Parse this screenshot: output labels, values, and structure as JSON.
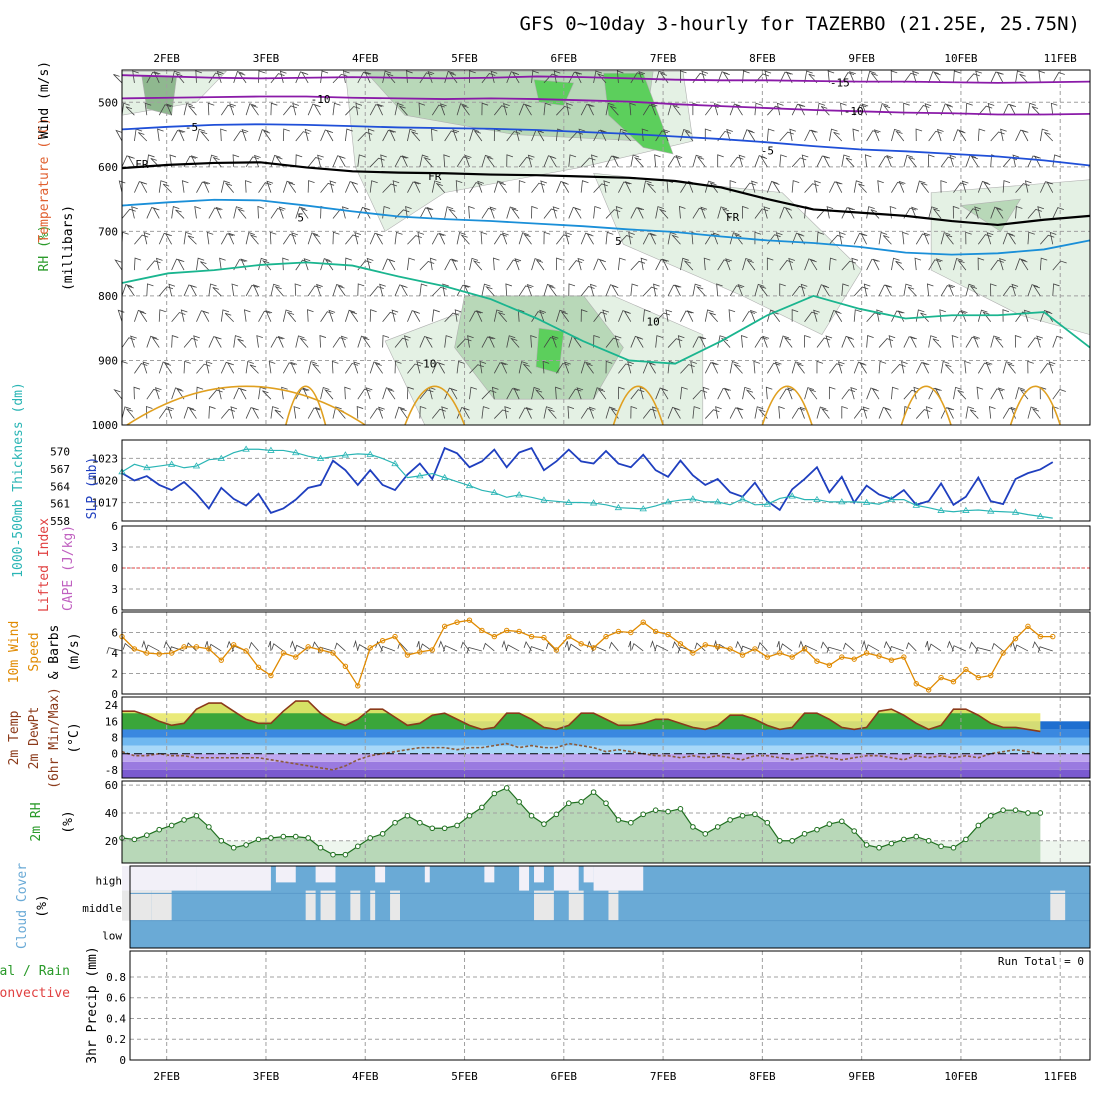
{
  "title": "GFS 0~10day 3-hourly for TAZERBO (21.25E, 25.75N)",
  "colors": {
    "grid": "#a0a0a0",
    "rh_light": "#e4f1e4",
    "rh_mid": "#b8d8b8",
    "rh_dark": "#8fb88f",
    "rh_bright": "#5ccf5c",
    "wind_barb": "#444444",
    "slp": "#1f3fbf",
    "thickness": "#2ab5b5",
    "wind10": "#e08a00",
    "temp_fill": "#3aa63a",
    "temp_hot": "#e8e86a",
    "temp_line": "#8b3a1a",
    "dew_line": "#8b5a3a",
    "rh2m_line": "#207020",
    "cloud": "#6aaad6",
    "cloud_clear": "#f2f0f8",
    "cloud_gap": "#e8e8e8",
    "lifted_zero": "#e04040"
  },
  "chart_data": [
    {
      "type": "contour",
      "name_panel": "upper_air",
      "ylabel_parts": [
        "RH (%)",
        "Temperature (°C)",
        "Wind (m/s)",
        "(millibars)"
      ],
      "yticks": [
        500,
        600,
        700,
        800,
        900,
        1000
      ],
      "ylim": [
        450,
        1000
      ],
      "xticks": [
        "2FEB",
        "3FEB",
        "4FEB",
        "5FEB",
        "6FEB",
        "7FEB",
        "8FEB",
        "9FEB",
        "10FEB",
        "11FEB"
      ],
      "contour_labels": [
        {
          "text": "-15",
          "day": 8.78,
          "p": 468,
          "color": "#8a1aa8"
        },
        {
          "text": "-10",
          "day": 3.55,
          "p": 493,
          "color": "#8a1aa8"
        },
        {
          "text": "-10",
          "day": 8.92,
          "p": 512,
          "color": "#8a1aa8"
        },
        {
          "text": "-5",
          "day": 2.25,
          "p": 537,
          "color": "#1f4fd8"
        },
        {
          "text": "-5",
          "day": 8.05,
          "p": 573,
          "color": "#1f4fd8"
        },
        {
          "text": "FR",
          "day": 1.75,
          "p": 594,
          "color": "#000000"
        },
        {
          "text": "FR",
          "day": 4.7,
          "p": 613,
          "color": "#000000"
        },
        {
          "text": "FR",
          "day": 7.7,
          "p": 676,
          "color": "#000000"
        },
        {
          "text": "5",
          "day": 3.35,
          "p": 677,
          "color": "#1a8fd8"
        },
        {
          "text": "5",
          "day": 6.55,
          "p": 713,
          "color": "#1a8fd8"
        },
        {
          "text": "10",
          "day": 6.9,
          "p": 838,
          "color": "#1ab58f"
        },
        {
          "text": "10",
          "day": 4.65,
          "p": 903,
          "color": "#1ab58f"
        }
      ],
      "temp_contours": [
        {
          "name": "-15",
          "color": "#8a1aa8",
          "p": [
            458,
            460,
            462,
            463,
            462,
            461,
            462,
            463,
            462,
            460,
            461,
            463,
            465,
            466,
            466,
            467,
            468,
            468,
            469,
            470,
            469,
            468
          ]
        },
        {
          "name": "-10",
          "color": "#8a1aa8",
          "p": [
            494,
            493,
            492,
            491,
            491,
            493,
            494,
            495,
            494,
            495,
            497,
            499,
            503,
            506,
            509,
            512,
            514,
            516,
            517,
            519,
            519,
            518
          ]
        },
        {
          "name": "-5",
          "color": "#1f4fd8",
          "p": [
            542,
            538,
            535,
            534,
            535,
            537,
            539,
            540,
            541,
            543,
            546,
            549,
            553,
            557,
            562,
            568,
            573,
            576,
            580,
            584,
            590,
            598
          ]
        },
        {
          "name": "FR",
          "color": "#000000",
          "p": [
            602,
            597,
            594,
            593,
            601,
            607,
            609,
            610,
            612,
            613,
            615,
            617,
            622,
            632,
            650,
            666,
            671,
            676,
            684,
            690,
            682,
            676
          ]
        },
        {
          "name": "5",
          "color": "#1a8fd8",
          "p": [
            660,
            655,
            651,
            652,
            660,
            669,
            677,
            681,
            684,
            688,
            692,
            697,
            701,
            708,
            714,
            718,
            724,
            733,
            736,
            734,
            728,
            714
          ]
        },
        {
          "name": "10",
          "color": "#1ab58f",
          "p": [
            780,
            765,
            760,
            752,
            748,
            753,
            770,
            785,
            805,
            835,
            870,
            900,
            905,
            870,
            830,
            800,
            820,
            835,
            830,
            830,
            825,
            880
          ]
        }
      ]
    },
    {
      "type": "line",
      "name_panel": "slp_thickness",
      "ylabel_left": "1000-500mb Thickness (dm)",
      "ylabel_right": "SLP (mb)",
      "yticks_left": [
        558,
        561,
        564,
        567,
        570
      ],
      "ylim_left": [
        558,
        572
      ],
      "yticks_right": [
        1017,
        1020,
        1023
      ],
      "ylim_right": [
        1014.5,
        1025.5
      ],
      "series": [
        {
          "name": "SLP (mb)",
          "axis": "right",
          "values": [
            1021,
            1020,
            1020.6,
            1019.4,
            1018.7,
            1019.8,
            1018.2,
            1016.2,
            1019,
            1017.5,
            1016.6,
            1018.2,
            1015.6,
            1016.2,
            1017.4,
            1019,
            1019.4,
            1022.7,
            1021.4,
            1019.4,
            1021.4,
            1019.4,
            1018.7,
            1020.8,
            1022.3,
            1020.2,
            1024.4,
            1023.7,
            1021.8,
            1022.6,
            1024.2,
            1021.8,
            1023.8,
            1024.4,
            1021.4,
            1022.6,
            1024.2,
            1022.6,
            1022.3,
            1024,
            1022.3,
            1021.8,
            1023.5,
            1021.4,
            1020.5,
            1022.7,
            1020.7,
            1019.4,
            1020.2,
            1018.4,
            1017.8,
            1019.7,
            1017.2,
            1016,
            1018.8,
            1020.2,
            1021.8,
            1018.4,
            1020.5,
            1017,
            1019.3,
            1018.1,
            1017.5,
            1018.7,
            1016.7,
            1017.2,
            1019.6,
            1016.7,
            1017.8,
            1020.4,
            1017.2,
            1016.8,
            1020.2,
            1021,
            1021.5,
            1022.5
          ]
        },
        {
          "name": "1000-500mb Thickness (dm)",
          "axis": "left",
          "values": [
            566.5,
            567.8,
            567.2,
            567.5,
            567.8,
            567.2,
            567.5,
            568.6,
            568.8,
            569.8,
            570.4,
            570.4,
            570.2,
            570.2,
            569.8,
            569.2,
            568.8,
            569.1,
            569.4,
            569.6,
            569.5,
            568.8,
            567.9,
            565.5,
            565.8,
            566.2,
            565.5,
            564.8,
            564.1,
            563.3,
            562.9,
            562.1,
            562.5,
            562.1,
            561.6,
            561.4,
            561.2,
            561.2,
            561.1,
            560.8,
            560.3,
            560.2,
            560.1,
            560.6,
            561.3,
            561.6,
            561.8,
            561.3,
            561.3,
            560.8,
            561.8,
            560.8,
            560.9,
            561.9,
            562.3,
            561.7,
            561.7,
            561.3,
            561.3,
            561.3,
            561.2,
            560.9,
            561.7,
            561.7,
            560.7,
            560.3,
            559.8,
            559.6,
            559.8,
            559.9,
            559.7,
            559.6,
            559.5,
            559.1,
            558.8,
            558.5
          ]
        }
      ]
    },
    {
      "type": "line",
      "name_panel": "stability",
      "ylabel_left": "Lifted Index",
      "ylabel_right": "CAPE (J/kg)",
      "yticks": [
        "6",
        "3",
        "0",
        "3",
        "6"
      ],
      "ylim": [
        -6,
        6
      ]
    },
    {
      "type": "line",
      "name_panel": "wind10m",
      "ylabel_parts": [
        "10m Wind",
        "Speed",
        "& Barbs",
        "(m/s)"
      ],
      "yticks": [
        0,
        2,
        4,
        6
      ],
      "ylim": [
        0,
        8
      ],
      "series": [
        {
          "name": "10m Wind Speed",
          "values": [
            5.6,
            4.4,
            4,
            3.9,
            4,
            4.6,
            4.6,
            4.4,
            3.3,
            4.8,
            4.2,
            2.6,
            1.8,
            4,
            3.6,
            4.6,
            4.3,
            4,
            2.7,
            0.8,
            4.5,
            5.2,
            5.6,
            3.8,
            4.1,
            4.3,
            6.6,
            7,
            7.2,
            6.2,
            5.6,
            6.2,
            6.1,
            5.6,
            5.5,
            4.3,
            5.6,
            4.9,
            4.5,
            5.6,
            6.1,
            6,
            7,
            6.1,
            5.8,
            4.9,
            4,
            4.8,
            4.6,
            4.4,
            3.8,
            4.4,
            3.6,
            4,
            3.6,
            4.4,
            3.2,
            2.8,
            3.6,
            3.4,
            4,
            3.7,
            3.3,
            3.6,
            1,
            0.4,
            1.6,
            1.2,
            2.4,
            1.6,
            1.8,
            4,
            5.4,
            6.6,
            5.6,
            5.6
          ]
        }
      ]
    },
    {
      "type": "area",
      "name_panel": "temp2m",
      "ylabel_parts": [
        "2m Temp",
        "2m DewPt",
        "(6hr Min/Max)",
        "(°C)"
      ],
      "yticks": [
        -8,
        0,
        8,
        16,
        24
      ],
      "ylim": [
        -12,
        28
      ],
      "series": [
        {
          "name": "2m Temp",
          "values": [
            21,
            21,
            19,
            16,
            14,
            15,
            22,
            25,
            25,
            21,
            17,
            15,
            15,
            21,
            26,
            26,
            20,
            16,
            14,
            17,
            22,
            22,
            18,
            14,
            15,
            19,
            20,
            17,
            14,
            12,
            13,
            20,
            20,
            17,
            13,
            12,
            14,
            20,
            20,
            17,
            14,
            14,
            15,
            17,
            17,
            15,
            13,
            12,
            14,
            19,
            19,
            17,
            14,
            12,
            13,
            20,
            20,
            17,
            13,
            12,
            13,
            21,
            22,
            19,
            15,
            12,
            14,
            22,
            22,
            19,
            15,
            13,
            13,
            12,
            11
          ]
        },
        {
          "name": "2m DewPt",
          "values": [
            1,
            -1,
            -1,
            0,
            -1,
            -1,
            -2,
            -2,
            -2,
            -2,
            -2,
            -2,
            -3,
            -4,
            -5,
            -6,
            -7,
            -8,
            -6,
            -3,
            -1,
            0,
            1,
            2,
            3,
            3,
            3,
            2,
            3,
            3,
            4,
            5,
            3,
            4,
            3,
            3,
            5,
            4,
            3,
            1,
            2,
            1,
            0,
            -1,
            -1,
            -2,
            -1,
            -2,
            -1,
            -2,
            -3,
            -1,
            -1,
            -2,
            -3,
            -2,
            -1,
            -2,
            -3,
            -2,
            -1,
            -1,
            -2,
            -3,
            -1,
            -2,
            -1,
            -2,
            -1,
            -2,
            0,
            1,
            2,
            1,
            0
          ]
        }
      ]
    },
    {
      "type": "area",
      "name_panel": "rh2m",
      "ylabel_parts": [
        "2m RH",
        "(%)"
      ],
      "yticks": [
        20,
        40,
        60
      ],
      "ylim": [
        4,
        63
      ],
      "series": [
        {
          "name": "2m RH",
          "values": [
            22,
            21,
            24,
            28,
            31,
            35,
            38,
            30,
            20,
            15,
            17,
            21,
            22,
            23,
            23,
            22,
            15,
            10,
            10,
            16,
            22,
            25,
            33,
            38,
            33,
            29,
            29,
            31,
            38,
            44,
            54,
            58,
            48,
            38,
            32,
            39,
            47,
            48,
            55,
            47,
            35,
            33,
            39,
            42,
            41,
            43,
            30,
            25,
            30,
            35,
            38,
            39,
            33,
            20,
            20,
            25,
            28,
            32,
            34,
            27,
            17,
            15,
            18,
            21,
            23,
            20,
            16,
            15,
            21,
            31,
            38,
            42,
            42,
            40,
            40
          ]
        }
      ]
    },
    {
      "type": "heatmap",
      "name_panel": "cloud_cover",
      "ylabel_parts": [
        "Cloud Cover",
        "(%)"
      ],
      "rows": [
        "high",
        "middle",
        "low"
      ],
      "high_clear_ranges": [
        [
          1.55,
          2.3
        ],
        [
          2.3,
          3.05
        ],
        [
          5.55,
          5.65
        ],
        [
          5.9,
          6.15
        ],
        [
          6.3,
          6.8
        ]
      ],
      "high_clear_blocks": [
        [
          3.1,
          3.3
        ],
        [
          3.5,
          3.7
        ],
        [
          4.1,
          4.2
        ],
        [
          4.6,
          4.65
        ],
        [
          5.2,
          5.3
        ],
        [
          5.7,
          5.8
        ],
        [
          6.2,
          6.3
        ]
      ],
      "middle_gap_blocks": [
        [
          1.55,
          1.85
        ],
        [
          1.85,
          2.05
        ],
        [
          3.4,
          3.5
        ],
        [
          3.55,
          3.7
        ],
        [
          3.85,
          3.95
        ],
        [
          4.05,
          4.1
        ],
        [
          4.25,
          4.35
        ],
        [
          5.7,
          5.9
        ],
        [
          6.05,
          6.2
        ],
        [
          6.45,
          6.55
        ],
        [
          10.9,
          11.05
        ]
      ]
    },
    {
      "type": "bar",
      "name_panel": "precip",
      "ylabel_left": "Total / Rain",
      "ylabel_left2": "Convective",
      "ylabel_right": "3hr Precip (mm)",
      "yticks": [
        0,
        0.2,
        0.4,
        0.6,
        0.8
      ],
      "ylim": [
        0,
        1.05
      ],
      "run_total": "Run Total = 0"
    }
  ]
}
